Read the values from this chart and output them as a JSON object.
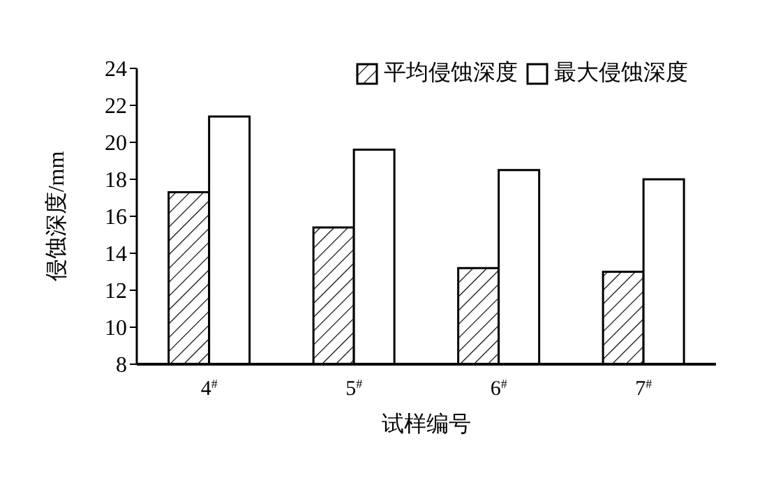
{
  "chart_data": {
    "type": "bar",
    "xlabel": "试样编号",
    "ylabel": "侵蚀深度/mm",
    "categories": [
      "4$^{#}$",
      "5$^{#}$",
      "6$^{#}$",
      "7$^{#}$"
    ],
    "series": [
      {
        "name": "平均侵蚀深度",
        "color": "#000000",
        "values": [
          17.3,
          15.4,
          13.2,
          13.0
        ]
      },
      {
        "name": "最大侵蚀深度",
        "color": "#000000",
        "values": [
          21.4,
          19.6,
          18.5,
          18.0
        ]
      }
    ],
    "ylim": [
      8,
      24
    ],
    "yticks": [
      8,
      10,
      12,
      14,
      16,
      18,
      20,
      22,
      24
    ],
    "grid": false,
    "legend": "top right"
  }
}
